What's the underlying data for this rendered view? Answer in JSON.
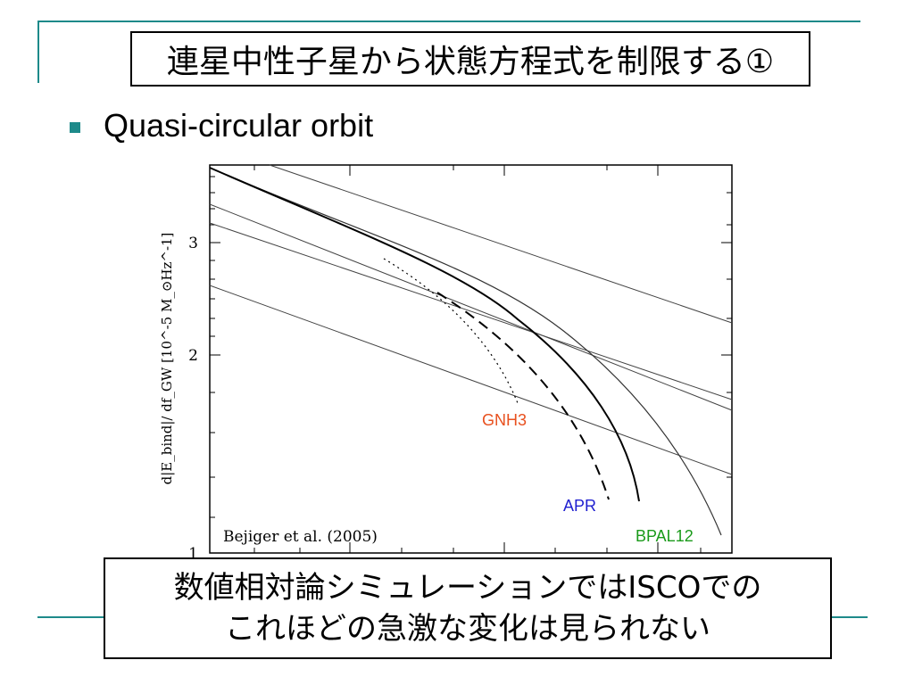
{
  "slide": {
    "title": "連星中性子星から状態方程式を制限する①",
    "bullet": "Quasi-circular orbit",
    "note_lines": [
      "数値相対論シミュレーションではISCOでの",
      "これほどの急激な変化は見られない"
    ]
  },
  "figure": {
    "citation": "Bejiger et al. (2005)",
    "y_axis_label": "d|E_bind|/ df_GW [10^-5 M_⊙Hz^-1]",
    "tick_labels": {
      "y_top": "3",
      "y_mid": "2",
      "y_bottom": "1"
    },
    "curve_labels": {
      "gnh3": "GNH3",
      "apr": "APR",
      "bpal12": "BPAL12"
    }
  },
  "chart_data": {
    "type": "line",
    "yscale": "log",
    "ylim": [
      1,
      3.8
    ],
    "ylabel": "d|E_bind|/ df_GW [10^-5 M_⊙Hz^-1]",
    "y_ticks": [
      1,
      2,
      3
    ],
    "annotations": [
      "Bejiger et al. (2005)"
    ],
    "series": [
      {
        "name": "GNH3",
        "color": "#e8501e",
        "style": "dotted"
      },
      {
        "name": "APR",
        "color": "#1f1fd0",
        "style": "dashed"
      },
      {
        "name": "BPAL12",
        "color": "#1a9a1a",
        "style": "solid"
      }
    ]
  },
  "colors": {
    "accent": "#1e8a8a",
    "gnh3": "#e8501e",
    "apr": "#1f1fd0",
    "bpal12": "#1a9a1a"
  }
}
